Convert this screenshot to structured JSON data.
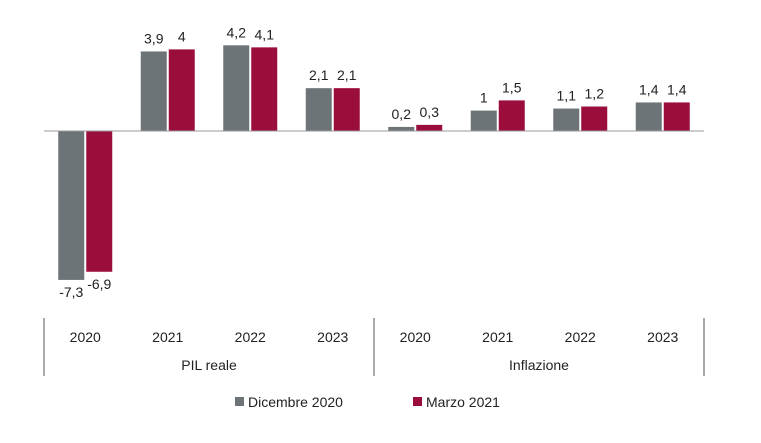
{
  "chart_data": {
    "type": "bar",
    "groups": [
      {
        "label": "PIL reale",
        "categories": [
          "2020",
          "2021",
          "2022",
          "2023"
        ]
      },
      {
        "label": "Inflazione",
        "categories": [
          "2020",
          "2021",
          "2022",
          "2023"
        ]
      }
    ],
    "series": [
      {
        "name": "Dicembre 2020",
        "color": "#6d7478",
        "values": [
          -7.3,
          3.9,
          4.2,
          2.1,
          0.2,
          1.0,
          1.1,
          1.4
        ],
        "labels": [
          "-7,3",
          "3,9",
          "4,2",
          "2,1",
          "0,2",
          "1",
          "1,1",
          "1,4"
        ]
      },
      {
        "name": "Marzo 2021",
        "color": "#9b0d3a",
        "values": [
          -6.9,
          4.0,
          4.1,
          2.1,
          0.3,
          1.5,
          1.2,
          1.4
        ],
        "labels": [
          "-6,9",
          "4",
          "4,1",
          "2,1",
          "0,3",
          "1,5",
          "1,2",
          "1,4"
        ]
      }
    ],
    "legend_position": "bottom",
    "grid": false
  }
}
